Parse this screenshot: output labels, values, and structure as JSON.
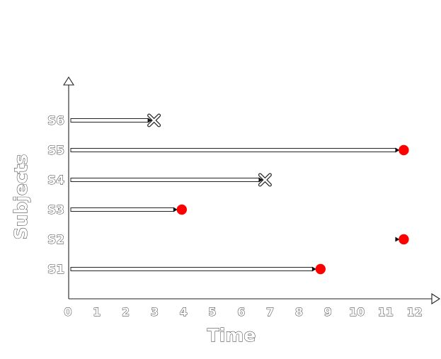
{
  "diagram": {
    "x_axis": {
      "title": "Time",
      "ticks": [
        "0",
        "1",
        "2",
        "3",
        "4",
        "5",
        "6",
        "7",
        "8",
        "9",
        "10",
        "11",
        "12"
      ]
    },
    "y_axis": {
      "title": "Subjects"
    },
    "event_color": "#ff0000",
    "subjects": [
      {
        "label": "S1",
        "start": 0,
        "end": 9,
        "outcome": "event"
      },
      {
        "label": "S2",
        "start": 12,
        "end": 12,
        "outcome": "event"
      },
      {
        "label": "S3",
        "start": 0,
        "end": 4,
        "outcome": "event"
      },
      {
        "label": "S4",
        "start": 0,
        "end": 7,
        "outcome": "censored"
      },
      {
        "label": "S5",
        "start": 0,
        "end": 12,
        "outcome": "event"
      },
      {
        "label": "S6",
        "start": 0,
        "end": 3,
        "outcome": "censored"
      }
    ]
  }
}
